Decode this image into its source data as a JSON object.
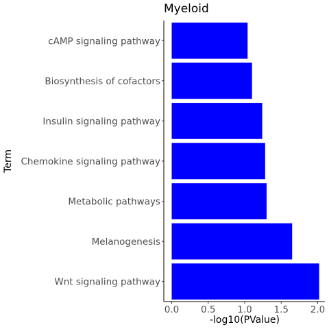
{
  "chart_data": {
    "type": "bar",
    "orientation": "horizontal",
    "title": "Myeloid",
    "xlabel": "-log10(PValue)",
    "ylabel": "Term",
    "categories": [
      "cAMP signaling pathway",
      "Biosynthesis of cofactors",
      "Insulin signaling pathway",
      "Chemokine signaling pathway",
      "Metabolic pathways",
      "Melanogenesis",
      "Wnt signaling pathway"
    ],
    "values": [
      1.04,
      1.1,
      1.24,
      1.28,
      1.3,
      1.65,
      2.02
    ],
    "xlim": [
      -0.1,
      2.12
    ],
    "xticks": [
      "0.0",
      "0.5",
      "1.0",
      "1.5",
      "2.0"
    ],
    "bar_color": "#0000ff",
    "grid": false
  }
}
